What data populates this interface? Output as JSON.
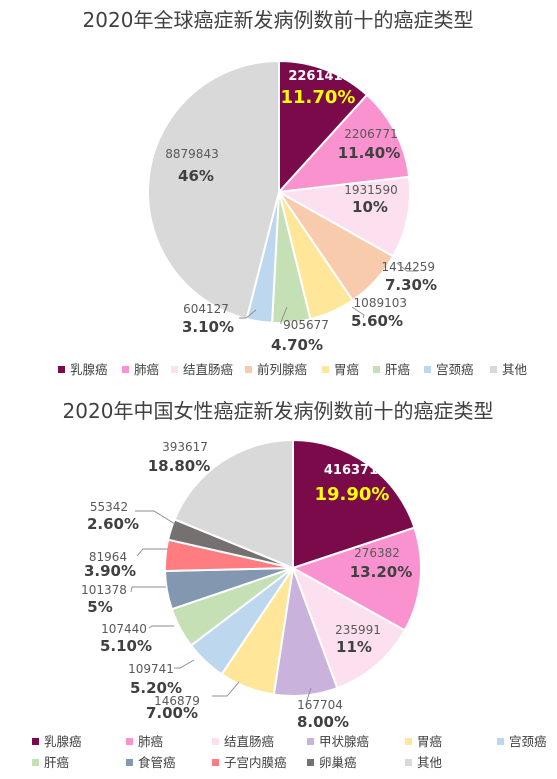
{
  "chart_data": [
    {
      "type": "pie",
      "title": "2020年全球癌症新发病例数前十的癌症类型",
      "slices": [
        {
          "name": "乳腺癌",
          "value": 2261419,
          "pct": "11.70%",
          "color": "#7b0a4b"
        },
        {
          "name": "肺癌",
          "value": 2206771,
          "pct": "11.40%",
          "color": "#f992cf"
        },
        {
          "name": "结直肠癌",
          "value": 1931590,
          "pct": "10%",
          "color": "#fde0ef"
        },
        {
          "name": "前列腺癌",
          "value": 1414259,
          "pct": "7.30%",
          "color": "#f8cbad"
        },
        {
          "name": "胃癌",
          "value": 1089103,
          "pct": "5.60%",
          "color": "#ffe699"
        },
        {
          "name": "肝癌",
          "value": 905677,
          "pct": "4.70%",
          "color": "#c5e0b4"
        },
        {
          "name": "宫颈癌",
          "value": 604127,
          "pct": "3.10%",
          "color": "#bdd7ee"
        },
        {
          "name": "其他",
          "value": 8879843,
          "pct": "46%",
          "color": "#d9d9d9"
        }
      ]
    },
    {
      "type": "pie",
      "title": "2020年中国女性癌症新发病例数前十的癌症类型",
      "slices": [
        {
          "name": "乳腺癌",
          "value": 416371,
          "pct": "19.90%",
          "color": "#7b0a4b"
        },
        {
          "name": "肺癌",
          "value": 276382,
          "pct": "13.20%",
          "color": "#f992cf"
        },
        {
          "name": "结直肠癌",
          "value": 235991,
          "pct": "11%",
          "color": "#fde0ef"
        },
        {
          "name": "甲状腺癌",
          "value": 167704,
          "pct": "8.00%",
          "color": "#c9b3dc"
        },
        {
          "name": "胃癌",
          "value": 146879,
          "pct": "7.00%",
          "color": "#ffe699"
        },
        {
          "name": "宫颈癌",
          "value": 109741,
          "pct": "5.20%",
          "color": "#bdd7ee"
        },
        {
          "name": "肝癌",
          "value": 107440,
          "pct": "5.10%",
          "color": "#c5e0b4"
        },
        {
          "name": "食管癌",
          "value": 101378,
          "pct": "5%",
          "color": "#8497b0"
        },
        {
          "name": "子宫内膜癌",
          "value": 81964,
          "pct": "3.90%",
          "color": "#ff7c80"
        },
        {
          "name": "卵巢癌",
          "value": 55342,
          "pct": "2.60%",
          "color": "#767171"
        },
        {
          "name": "其他",
          "value": 393617,
          "pct": "18.80%",
          "color": "#d9d9d9"
        }
      ]
    }
  ]
}
